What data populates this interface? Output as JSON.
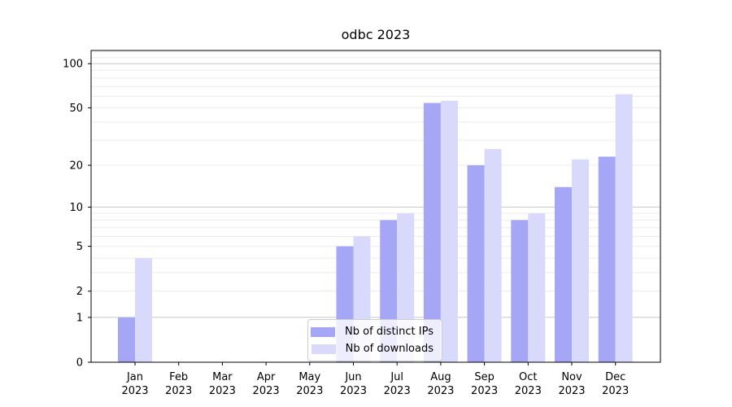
{
  "title": "odbc 2023",
  "chart_data": {
    "type": "bar",
    "title": "odbc 2023",
    "scale": "log1p",
    "categories": [
      {
        "month": "Jan",
        "year": "2023"
      },
      {
        "month": "Feb",
        "year": "2023"
      },
      {
        "month": "Mar",
        "year": "2023"
      },
      {
        "month": "Apr",
        "year": "2023"
      },
      {
        "month": "May",
        "year": "2023"
      },
      {
        "month": "Jun",
        "year": "2023"
      },
      {
        "month": "Jul",
        "year": "2023"
      },
      {
        "month": "Aug",
        "year": "2023"
      },
      {
        "month": "Sep",
        "year": "2023"
      },
      {
        "month": "Oct",
        "year": "2023"
      },
      {
        "month": "Nov",
        "year": "2023"
      },
      {
        "month": "Dec",
        "year": "2023"
      }
    ],
    "series": [
      {
        "name": "Nb of distinct IPs",
        "color": "#a5a6f6",
        "values": [
          1,
          0,
          0,
          0,
          0,
          5,
          8,
          54,
          20,
          8,
          14,
          23
        ]
      },
      {
        "name": "Nb of downloads",
        "color": "#d9dafb",
        "values": [
          4,
          0,
          0,
          0,
          0,
          6,
          9,
          56,
          26,
          9,
          22,
          62
        ]
      }
    ],
    "yticks": [
      0,
      1,
      2,
      5,
      10,
      20,
      50,
      100
    ],
    "ylim": [
      0,
      123
    ],
    "grid": {
      "minor_values": [
        2,
        3,
        4,
        5,
        6,
        7,
        8,
        9,
        20,
        30,
        40,
        50,
        60,
        70,
        80,
        90,
        110,
        120
      ],
      "major_values": [
        1,
        10,
        100
      ],
      "minor_color": "#ececec",
      "major_color": "#c8c8c8"
    },
    "frame_color": "#000000",
    "legend_position": "inside-bottom-center"
  }
}
